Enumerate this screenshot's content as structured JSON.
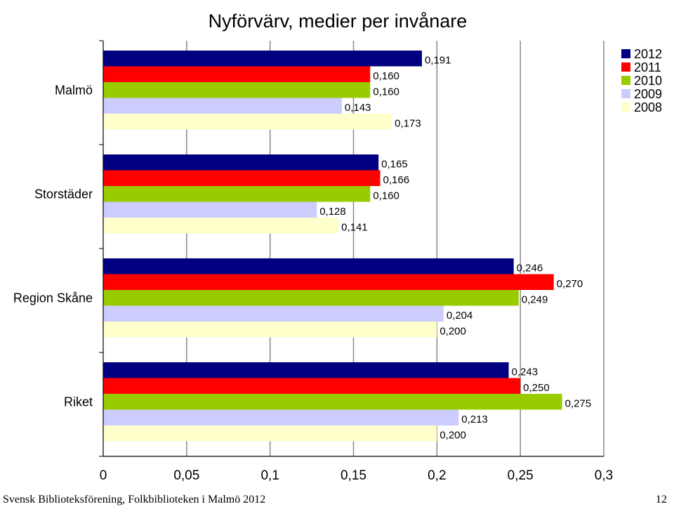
{
  "chart_data": {
    "type": "bar",
    "orientation": "horizontal",
    "title": "Nyförvärv, medier per invånare",
    "categories": [
      "Malmö",
      "Storstäder",
      "Region Skåne",
      "Riket"
    ],
    "series": [
      {
        "name": "2012",
        "color": "#000080",
        "values": [
          0.191,
          0.165,
          0.246,
          0.243
        ],
        "labels": [
          "0,191",
          "0,165",
          "0,246",
          "0,243"
        ]
      },
      {
        "name": "2011",
        "color": "#ff0000",
        "values": [
          0.16,
          0.166,
          0.27,
          0.25
        ],
        "labels": [
          "0,160",
          "0,166",
          "0,270",
          "0,250"
        ]
      },
      {
        "name": "2010",
        "color": "#99cc00",
        "values": [
          0.16,
          0.16,
          0.249,
          0.275
        ],
        "labels": [
          "0,160",
          "0,160",
          "0,249",
          "0,275"
        ]
      },
      {
        "name": "2009",
        "color": "#ccccff",
        "values": [
          0.143,
          0.128,
          0.204,
          0.213
        ],
        "labels": [
          "0,143",
          "0,128",
          "0,204",
          "0,213"
        ]
      },
      {
        "name": "2008",
        "color": "#ffffcc",
        "values": [
          0.173,
          0.141,
          0.2,
          0.2
        ],
        "labels": [
          "0,173",
          "0,141",
          "0,200",
          "0,200"
        ]
      }
    ],
    "xlim": [
      0,
      0.3
    ],
    "xticks": [
      0,
      0.05,
      0.1,
      0.15,
      0.2,
      0.25,
      0.3
    ],
    "xtick_labels": [
      "0",
      "0,05",
      "0,1",
      "0,15",
      "0,2",
      "0,25",
      "0,3"
    ],
    "grid": true,
    "legend_position": "top-right",
    "xlabel": "",
    "ylabel": ""
  },
  "footer": {
    "source": "Svensk Biblioteksförening, Folkbiblioteken i Malmö 2012",
    "page_number": "12"
  }
}
